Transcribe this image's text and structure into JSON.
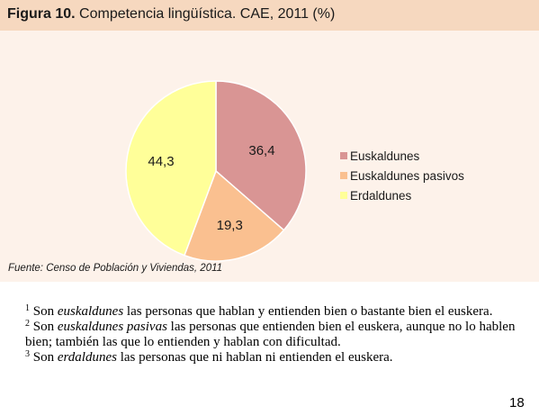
{
  "figure": {
    "label": "Figura 10.",
    "title": "Competencia lingüística. CAE, 2011 (%)"
  },
  "chart_data": {
    "type": "pie",
    "categories": [
      "Euskaldunes",
      "Euskaldunes pasivos",
      "Erdaldunes"
    ],
    "values": [
      36.4,
      19.3,
      44.3
    ],
    "value_labels": [
      "36,4",
      "19,3",
      "44,3"
    ],
    "colors": [
      "#d99594",
      "#fac090",
      "#ffff99"
    ],
    "legend_position": "right",
    "title": "Competencia lingüística. CAE, 2011 (%)"
  },
  "source": "Fuente: Censo de Población y Viviendas, 2011",
  "footnotes": [
    {
      "num": "1",
      "pre": "Son ",
      "term": "euskaldunes",
      "post": " las personas que hablan y entienden bien o bastante bien el euskera."
    },
    {
      "num": "2",
      "pre": "Son ",
      "term": "euskaldunes pasivas",
      "post": " las personas que entienden bien el euskera, aunque no lo hablen bien; también las que lo entienden y hablan con dificultad."
    },
    {
      "num": "3",
      "pre": "Son ",
      "term": "erdaldunes",
      "post": " las personas que ni hablan ni entienden el euskera."
    }
  ],
  "page_number": "18"
}
